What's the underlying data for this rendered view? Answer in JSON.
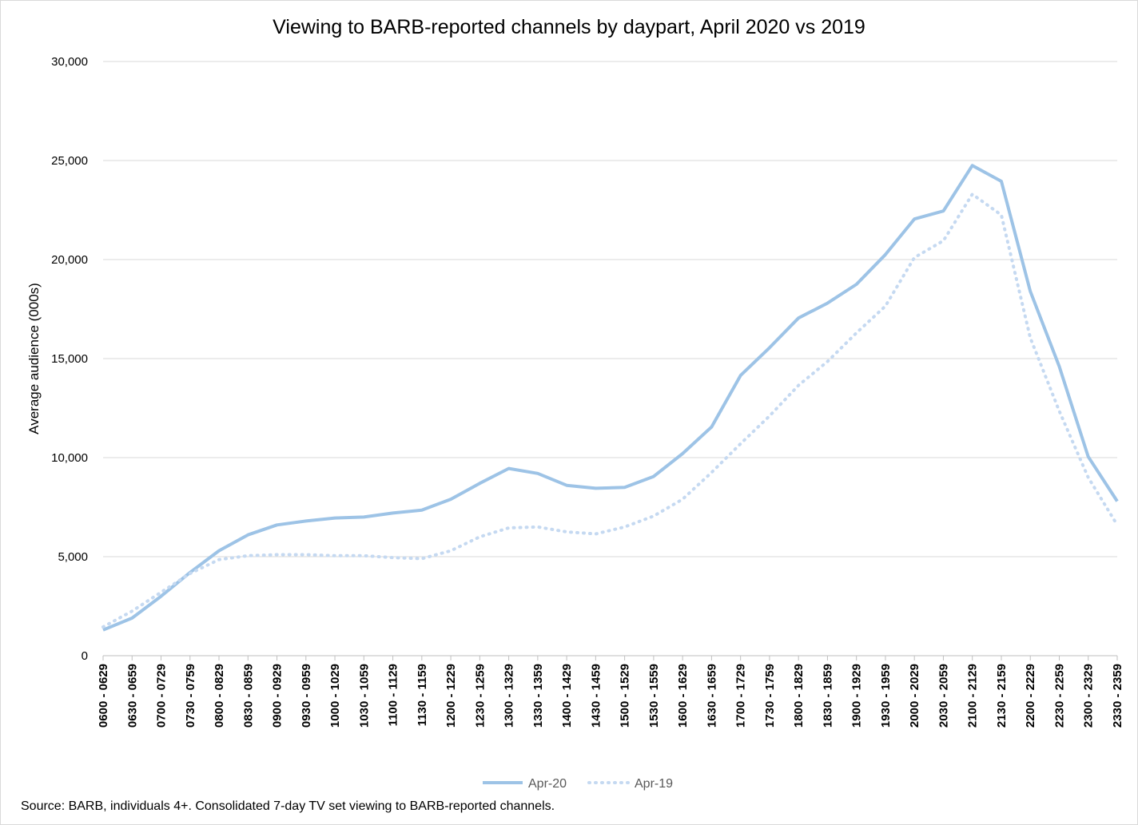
{
  "chart_data": {
    "type": "line",
    "title": "Viewing to BARB-reported channels by daypart, April 2020 vs 2019",
    "xlabel": "",
    "ylabel": "Average audience (000s)",
    "ylim": [
      0,
      30000
    ],
    "yticks": [
      0,
      5000,
      10000,
      15000,
      20000,
      25000,
      30000
    ],
    "ytick_labels": [
      "0",
      "5,000",
      "10,000",
      "15,000",
      "20,000",
      "25,000",
      "30,000"
    ],
    "grid": true,
    "legend_position": "bottom",
    "categories": [
      "0600 - 0629",
      "0630 - 0659",
      "0700 - 0729",
      "0730 - 0759",
      "0800 - 0829",
      "0830 - 0859",
      "0900 - 0929",
      "0930 - 0959",
      "1000 - 1029",
      "1030 - 1059",
      "1100 - 1129",
      "1130 - 1159",
      "1200 - 1229",
      "1230 - 1259",
      "1300 - 1329",
      "1330 - 1359",
      "1400 - 1429",
      "1430 - 1459",
      "1500 - 1529",
      "1530 - 1559",
      "1600 - 1629",
      "1630 - 1659",
      "1700 - 1729",
      "1730 - 1759",
      "1800 - 1829",
      "1830 - 1859",
      "1900 - 1929",
      "1930 - 1959",
      "2000 - 2029",
      "2030 - 2059",
      "2100 - 2129",
      "2130 - 2159",
      "2200 - 2229",
      "2230 - 2259",
      "2300 - 2329",
      "2330 - 2359"
    ],
    "series": [
      {
        "name": "Apr-20",
        "style": "solid",
        "color": "#9dc3e6",
        "values": [
          1300,
          1900,
          3000,
          4200,
          5300,
          6100,
          6600,
          6800,
          6950,
          7000,
          7200,
          7350,
          7900,
          8700,
          9450,
          9200,
          8600,
          8450,
          8500,
          9050,
          10200,
          11550,
          14150,
          15550,
          17050,
          17800,
          18750,
          20250,
          22050,
          22450,
          24750,
          23950,
          18400,
          14600,
          10050,
          7800
        ]
      },
      {
        "name": "Apr-19",
        "style": "dotted",
        "color": "#c5d9f1",
        "values": [
          1450,
          2250,
          3200,
          4150,
          4850,
          5050,
          5100,
          5100,
          5050,
          5050,
          4950,
          4900,
          5300,
          6000,
          6450,
          6500,
          6250,
          6150,
          6500,
          7050,
          7900,
          9250,
          10700,
          12100,
          13650,
          14850,
          16300,
          17650,
          20100,
          20950,
          23300,
          22250,
          16050,
          12350,
          9000,
          6600
        ]
      }
    ],
    "source_note": "Source: BARB, individuals 4+. Consolidated 7-day TV set viewing to BARB-reported channels."
  }
}
